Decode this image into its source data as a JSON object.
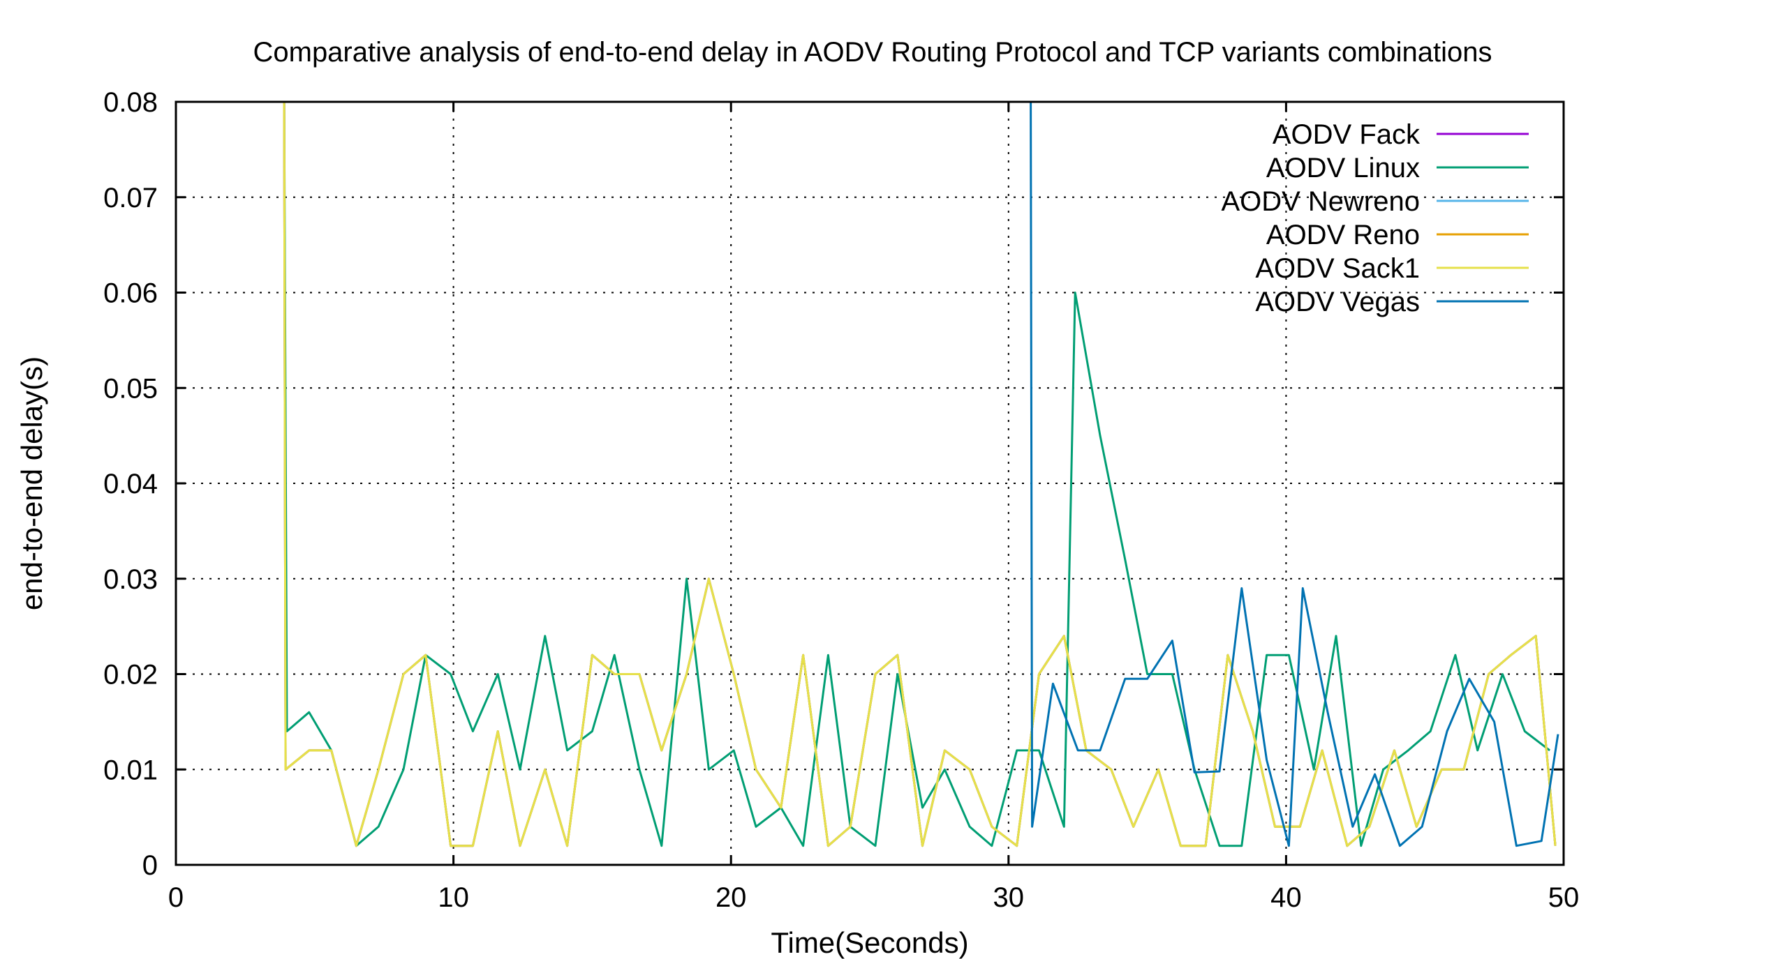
{
  "chart_data": {
    "type": "line",
    "title": "Comparative analysis of end-to-end delay in AODV Routing Protocol and TCP variants combinations",
    "xlabel": "Time(Seconds)",
    "ylabel": "end-to-end delay(s)",
    "xlim": [
      0,
      50
    ],
    "ylim": [
      0,
      0.08
    ],
    "xticks": [
      0,
      10,
      20,
      30,
      40,
      50
    ],
    "xtick_labels": [
      "0",
      "10",
      "20",
      "30",
      "40",
      "50"
    ],
    "yticks": [
      0,
      0.01,
      0.02,
      0.03,
      0.04,
      0.05,
      0.06,
      0.07,
      0.08
    ],
    "ytick_labels": [
      "0",
      "0.01",
      "0.02",
      "0.03",
      "0.04",
      "0.05",
      "0.06",
      "0.07",
      "0.08"
    ],
    "grid": true,
    "legend_position": "top-right",
    "series": [
      {
        "name": "AODV Fack",
        "color": "#9400d3",
        "points": [
          [
            3.9,
            0.08
          ],
          [
            3.95,
            0.01
          ],
          [
            4.8,
            0.012
          ],
          [
            5.6,
            0.012
          ],
          [
            6.5,
            0.002
          ],
          [
            7.3,
            0.01
          ],
          [
            8.2,
            0.02
          ],
          [
            9.0,
            0.022
          ],
          [
            9.9,
            0.002
          ],
          [
            10.7,
            0.002
          ],
          [
            11.6,
            0.014
          ],
          [
            12.4,
            0.002
          ],
          [
            13.3,
            0.01
          ],
          [
            14.1,
            0.002
          ],
          [
            15.0,
            0.022
          ],
          [
            15.8,
            0.02
          ],
          [
            16.7,
            0.02
          ],
          [
            17.5,
            0.012
          ],
          [
            18.4,
            0.02
          ],
          [
            19.2,
            0.03
          ],
          [
            20.1,
            0.02
          ],
          [
            20.9,
            0.01
          ],
          [
            21.8,
            0.006
          ],
          [
            22.6,
            0.022
          ],
          [
            23.5,
            0.002
          ],
          [
            24.3,
            0.004
          ],
          [
            25.2,
            0.02
          ],
          [
            26.0,
            0.022
          ],
          [
            26.9,
            0.002
          ],
          [
            27.7,
            0.012
          ],
          [
            28.6,
            0.01
          ],
          [
            29.4,
            0.004
          ],
          [
            30.3,
            0.002
          ],
          [
            31.1,
            0.02
          ],
          [
            32.0,
            0.024
          ],
          [
            32.8,
            0.012
          ],
          [
            33.7,
            0.01
          ],
          [
            34.5,
            0.004
          ],
          [
            35.4,
            0.01
          ],
          [
            36.2,
            0.002
          ],
          [
            37.1,
            0.002
          ],
          [
            37.9,
            0.022
          ],
          [
            38.8,
            0.014
          ],
          [
            39.6,
            0.004
          ],
          [
            40.5,
            0.004
          ],
          [
            41.3,
            0.012
          ],
          [
            42.2,
            0.002
          ],
          [
            43.0,
            0.004
          ],
          [
            43.9,
            0.012
          ],
          [
            44.7,
            0.004
          ],
          [
            45.6,
            0.01
          ],
          [
            46.4,
            0.01
          ],
          [
            47.3,
            0.02
          ],
          [
            48.1,
            0.022
          ],
          [
            49.0,
            0.024
          ],
          [
            49.7,
            0.002
          ]
        ]
      },
      {
        "name": "AODV Linux",
        "color": "#009e73",
        "points": [
          [
            3.9,
            0.08
          ],
          [
            4.0,
            0.014
          ],
          [
            4.8,
            0.016
          ],
          [
            5.6,
            0.012
          ],
          [
            6.5,
            0.002
          ],
          [
            7.3,
            0.004
          ],
          [
            8.2,
            0.01
          ],
          [
            9.0,
            0.022
          ],
          [
            9.9,
            0.02
          ],
          [
            10.7,
            0.014
          ],
          [
            11.6,
            0.02
          ],
          [
            12.4,
            0.01
          ],
          [
            13.3,
            0.024
          ],
          [
            14.1,
            0.012
          ],
          [
            15.0,
            0.014
          ],
          [
            15.8,
            0.022
          ],
          [
            16.7,
            0.01
          ],
          [
            17.5,
            0.002
          ],
          [
            18.4,
            0.03
          ],
          [
            19.2,
            0.01
          ],
          [
            20.1,
            0.012
          ],
          [
            20.9,
            0.004
          ],
          [
            21.8,
            0.006
          ],
          [
            22.6,
            0.002
          ],
          [
            23.5,
            0.022
          ],
          [
            24.3,
            0.004
          ],
          [
            25.2,
            0.002
          ],
          [
            26.0,
            0.02
          ],
          [
            26.9,
            0.006
          ],
          [
            27.7,
            0.01
          ],
          [
            28.6,
            0.004
          ],
          [
            29.4,
            0.002
          ],
          [
            30.3,
            0.012
          ],
          [
            31.1,
            0.012
          ],
          [
            32.0,
            0.004
          ],
          [
            32.4,
            0.06
          ],
          [
            33.3,
            0.045
          ],
          [
            34.2,
            0.032
          ],
          [
            35.0,
            0.02
          ],
          [
            35.9,
            0.02
          ],
          [
            36.7,
            0.01
          ],
          [
            37.6,
            0.002
          ],
          [
            38.4,
            0.002
          ],
          [
            39.3,
            0.022
          ],
          [
            40.1,
            0.022
          ],
          [
            41.0,
            0.01
          ],
          [
            41.8,
            0.024
          ],
          [
            42.7,
            0.002
          ],
          [
            43.5,
            0.01
          ],
          [
            44.4,
            0.012
          ],
          [
            45.2,
            0.014
          ],
          [
            46.1,
            0.022
          ],
          [
            46.9,
            0.012
          ],
          [
            47.8,
            0.02
          ],
          [
            48.6,
            0.014
          ],
          [
            49.5,
            0.012
          ]
        ]
      },
      {
        "name": "AODV Newreno",
        "color": "#56b4e9",
        "points": [
          [
            3.9,
            0.08
          ],
          [
            3.95,
            0.01
          ],
          [
            4.8,
            0.012
          ],
          [
            5.6,
            0.012
          ],
          [
            6.5,
            0.002
          ],
          [
            7.3,
            0.01
          ],
          [
            8.2,
            0.02
          ],
          [
            9.0,
            0.022
          ],
          [
            9.9,
            0.002
          ],
          [
            10.7,
            0.002
          ],
          [
            11.6,
            0.014
          ],
          [
            12.4,
            0.002
          ],
          [
            13.3,
            0.01
          ],
          [
            14.1,
            0.002
          ],
          [
            15.0,
            0.022
          ],
          [
            15.8,
            0.02
          ],
          [
            16.7,
            0.02
          ],
          [
            17.5,
            0.012
          ],
          [
            18.4,
            0.02
          ],
          [
            19.2,
            0.03
          ],
          [
            20.1,
            0.02
          ],
          [
            20.9,
            0.01
          ],
          [
            21.8,
            0.006
          ],
          [
            22.6,
            0.022
          ],
          [
            23.5,
            0.002
          ],
          [
            24.3,
            0.004
          ],
          [
            25.2,
            0.02
          ],
          [
            26.0,
            0.022
          ],
          [
            26.9,
            0.002
          ],
          [
            27.7,
            0.012
          ],
          [
            28.6,
            0.01
          ],
          [
            29.4,
            0.004
          ],
          [
            30.3,
            0.002
          ],
          [
            31.1,
            0.02
          ],
          [
            32.0,
            0.024
          ],
          [
            32.8,
            0.012
          ],
          [
            33.7,
            0.01
          ],
          [
            34.5,
            0.004
          ],
          [
            35.4,
            0.01
          ],
          [
            36.2,
            0.002
          ],
          [
            37.1,
            0.002
          ],
          [
            37.9,
            0.022
          ],
          [
            38.8,
            0.014
          ],
          [
            39.6,
            0.004
          ],
          [
            40.5,
            0.004
          ],
          [
            41.3,
            0.012
          ],
          [
            42.2,
            0.002
          ],
          [
            43.0,
            0.004
          ],
          [
            43.9,
            0.012
          ],
          [
            44.7,
            0.004
          ],
          [
            45.6,
            0.01
          ],
          [
            46.4,
            0.01
          ],
          [
            47.3,
            0.02
          ],
          [
            48.1,
            0.022
          ],
          [
            49.0,
            0.024
          ],
          [
            49.7,
            0.002
          ]
        ]
      },
      {
        "name": "AODV Reno",
        "color": "#e69f00",
        "points": [
          [
            3.9,
            0.08
          ],
          [
            3.95,
            0.01
          ],
          [
            4.8,
            0.012
          ],
          [
            5.6,
            0.012
          ],
          [
            6.5,
            0.002
          ],
          [
            7.3,
            0.01
          ],
          [
            8.2,
            0.02
          ],
          [
            9.0,
            0.022
          ],
          [
            9.9,
            0.002
          ],
          [
            10.7,
            0.002
          ],
          [
            11.6,
            0.014
          ],
          [
            12.4,
            0.002
          ],
          [
            13.3,
            0.01
          ],
          [
            14.1,
            0.002
          ],
          [
            15.0,
            0.022
          ],
          [
            15.8,
            0.02
          ],
          [
            16.7,
            0.02
          ],
          [
            17.5,
            0.012
          ],
          [
            18.4,
            0.02
          ],
          [
            19.2,
            0.03
          ],
          [
            20.1,
            0.02
          ],
          [
            20.9,
            0.01
          ],
          [
            21.8,
            0.006
          ],
          [
            22.6,
            0.022
          ],
          [
            23.5,
            0.002
          ],
          [
            24.3,
            0.004
          ],
          [
            25.2,
            0.02
          ],
          [
            26.0,
            0.022
          ],
          [
            26.9,
            0.002
          ],
          [
            27.7,
            0.012
          ],
          [
            28.6,
            0.01
          ],
          [
            29.4,
            0.004
          ],
          [
            30.3,
            0.002
          ],
          [
            31.1,
            0.02
          ],
          [
            32.0,
            0.024
          ],
          [
            32.8,
            0.012
          ],
          [
            33.7,
            0.01
          ],
          [
            34.5,
            0.004
          ],
          [
            35.4,
            0.01
          ],
          [
            36.2,
            0.002
          ],
          [
            37.1,
            0.002
          ],
          [
            37.9,
            0.022
          ],
          [
            38.8,
            0.014
          ],
          [
            39.6,
            0.004
          ],
          [
            40.5,
            0.004
          ],
          [
            41.3,
            0.012
          ],
          [
            42.2,
            0.002
          ],
          [
            43.0,
            0.004
          ],
          [
            43.9,
            0.012
          ],
          [
            44.7,
            0.004
          ],
          [
            45.6,
            0.01
          ],
          [
            46.4,
            0.01
          ],
          [
            47.3,
            0.02
          ],
          [
            48.1,
            0.022
          ],
          [
            49.0,
            0.024
          ],
          [
            49.7,
            0.002
          ]
        ]
      },
      {
        "name": "AODV Sack1",
        "color": "#e6e04a",
        "points": [
          [
            3.9,
            0.08
          ],
          [
            3.95,
            0.01
          ],
          [
            4.8,
            0.012
          ],
          [
            5.6,
            0.012
          ],
          [
            6.5,
            0.002
          ],
          [
            7.3,
            0.01
          ],
          [
            8.2,
            0.02
          ],
          [
            9.0,
            0.022
          ],
          [
            9.9,
            0.002
          ],
          [
            10.7,
            0.002
          ],
          [
            11.6,
            0.014
          ],
          [
            12.4,
            0.002
          ],
          [
            13.3,
            0.01
          ],
          [
            14.1,
            0.002
          ],
          [
            15.0,
            0.022
          ],
          [
            15.8,
            0.02
          ],
          [
            16.7,
            0.02
          ],
          [
            17.5,
            0.012
          ],
          [
            18.4,
            0.02
          ],
          [
            19.2,
            0.03
          ],
          [
            20.1,
            0.02
          ],
          [
            20.9,
            0.01
          ],
          [
            21.8,
            0.006
          ],
          [
            22.6,
            0.022
          ],
          [
            23.5,
            0.002
          ],
          [
            24.3,
            0.004
          ],
          [
            25.2,
            0.02
          ],
          [
            26.0,
            0.022
          ],
          [
            26.9,
            0.002
          ],
          [
            27.7,
            0.012
          ],
          [
            28.6,
            0.01
          ],
          [
            29.4,
            0.004
          ],
          [
            30.3,
            0.002
          ],
          [
            31.1,
            0.02
          ],
          [
            32.0,
            0.024
          ],
          [
            32.8,
            0.012
          ],
          [
            33.7,
            0.01
          ],
          [
            34.5,
            0.004
          ],
          [
            35.4,
            0.01
          ],
          [
            36.2,
            0.002
          ],
          [
            37.1,
            0.002
          ],
          [
            37.9,
            0.022
          ],
          [
            38.8,
            0.014
          ],
          [
            39.6,
            0.004
          ],
          [
            40.5,
            0.004
          ],
          [
            41.3,
            0.012
          ],
          [
            42.2,
            0.002
          ],
          [
            43.0,
            0.004
          ],
          [
            43.9,
            0.012
          ],
          [
            44.7,
            0.004
          ],
          [
            45.6,
            0.01
          ],
          [
            46.4,
            0.01
          ],
          [
            47.3,
            0.02
          ],
          [
            48.1,
            0.022
          ],
          [
            49.0,
            0.024
          ],
          [
            49.7,
            0.002
          ]
        ]
      },
      {
        "name": "AODV Vegas",
        "color": "#0072b2",
        "points": [
          [
            30.8,
            0.08
          ],
          [
            30.85,
            0.004
          ],
          [
            31.6,
            0.019
          ],
          [
            32.5,
            0.012
          ],
          [
            33.3,
            0.012
          ],
          [
            34.2,
            0.0195
          ],
          [
            35.0,
            0.0195
          ],
          [
            35.9,
            0.0235
          ],
          [
            36.7,
            0.0097
          ],
          [
            37.6,
            0.0098
          ],
          [
            38.4,
            0.029
          ],
          [
            39.3,
            0.011
          ],
          [
            40.1,
            0.002
          ],
          [
            40.6,
            0.029
          ],
          [
            41.5,
            0.016
          ],
          [
            42.4,
            0.004
          ],
          [
            43.2,
            0.0095
          ],
          [
            44.1,
            0.002
          ],
          [
            44.9,
            0.004
          ],
          [
            45.8,
            0.014
          ],
          [
            46.6,
            0.0195
          ],
          [
            47.5,
            0.015
          ],
          [
            48.3,
            0.002
          ],
          [
            49.2,
            0.0025
          ],
          [
            49.8,
            0.0137
          ]
        ]
      }
    ]
  }
}
